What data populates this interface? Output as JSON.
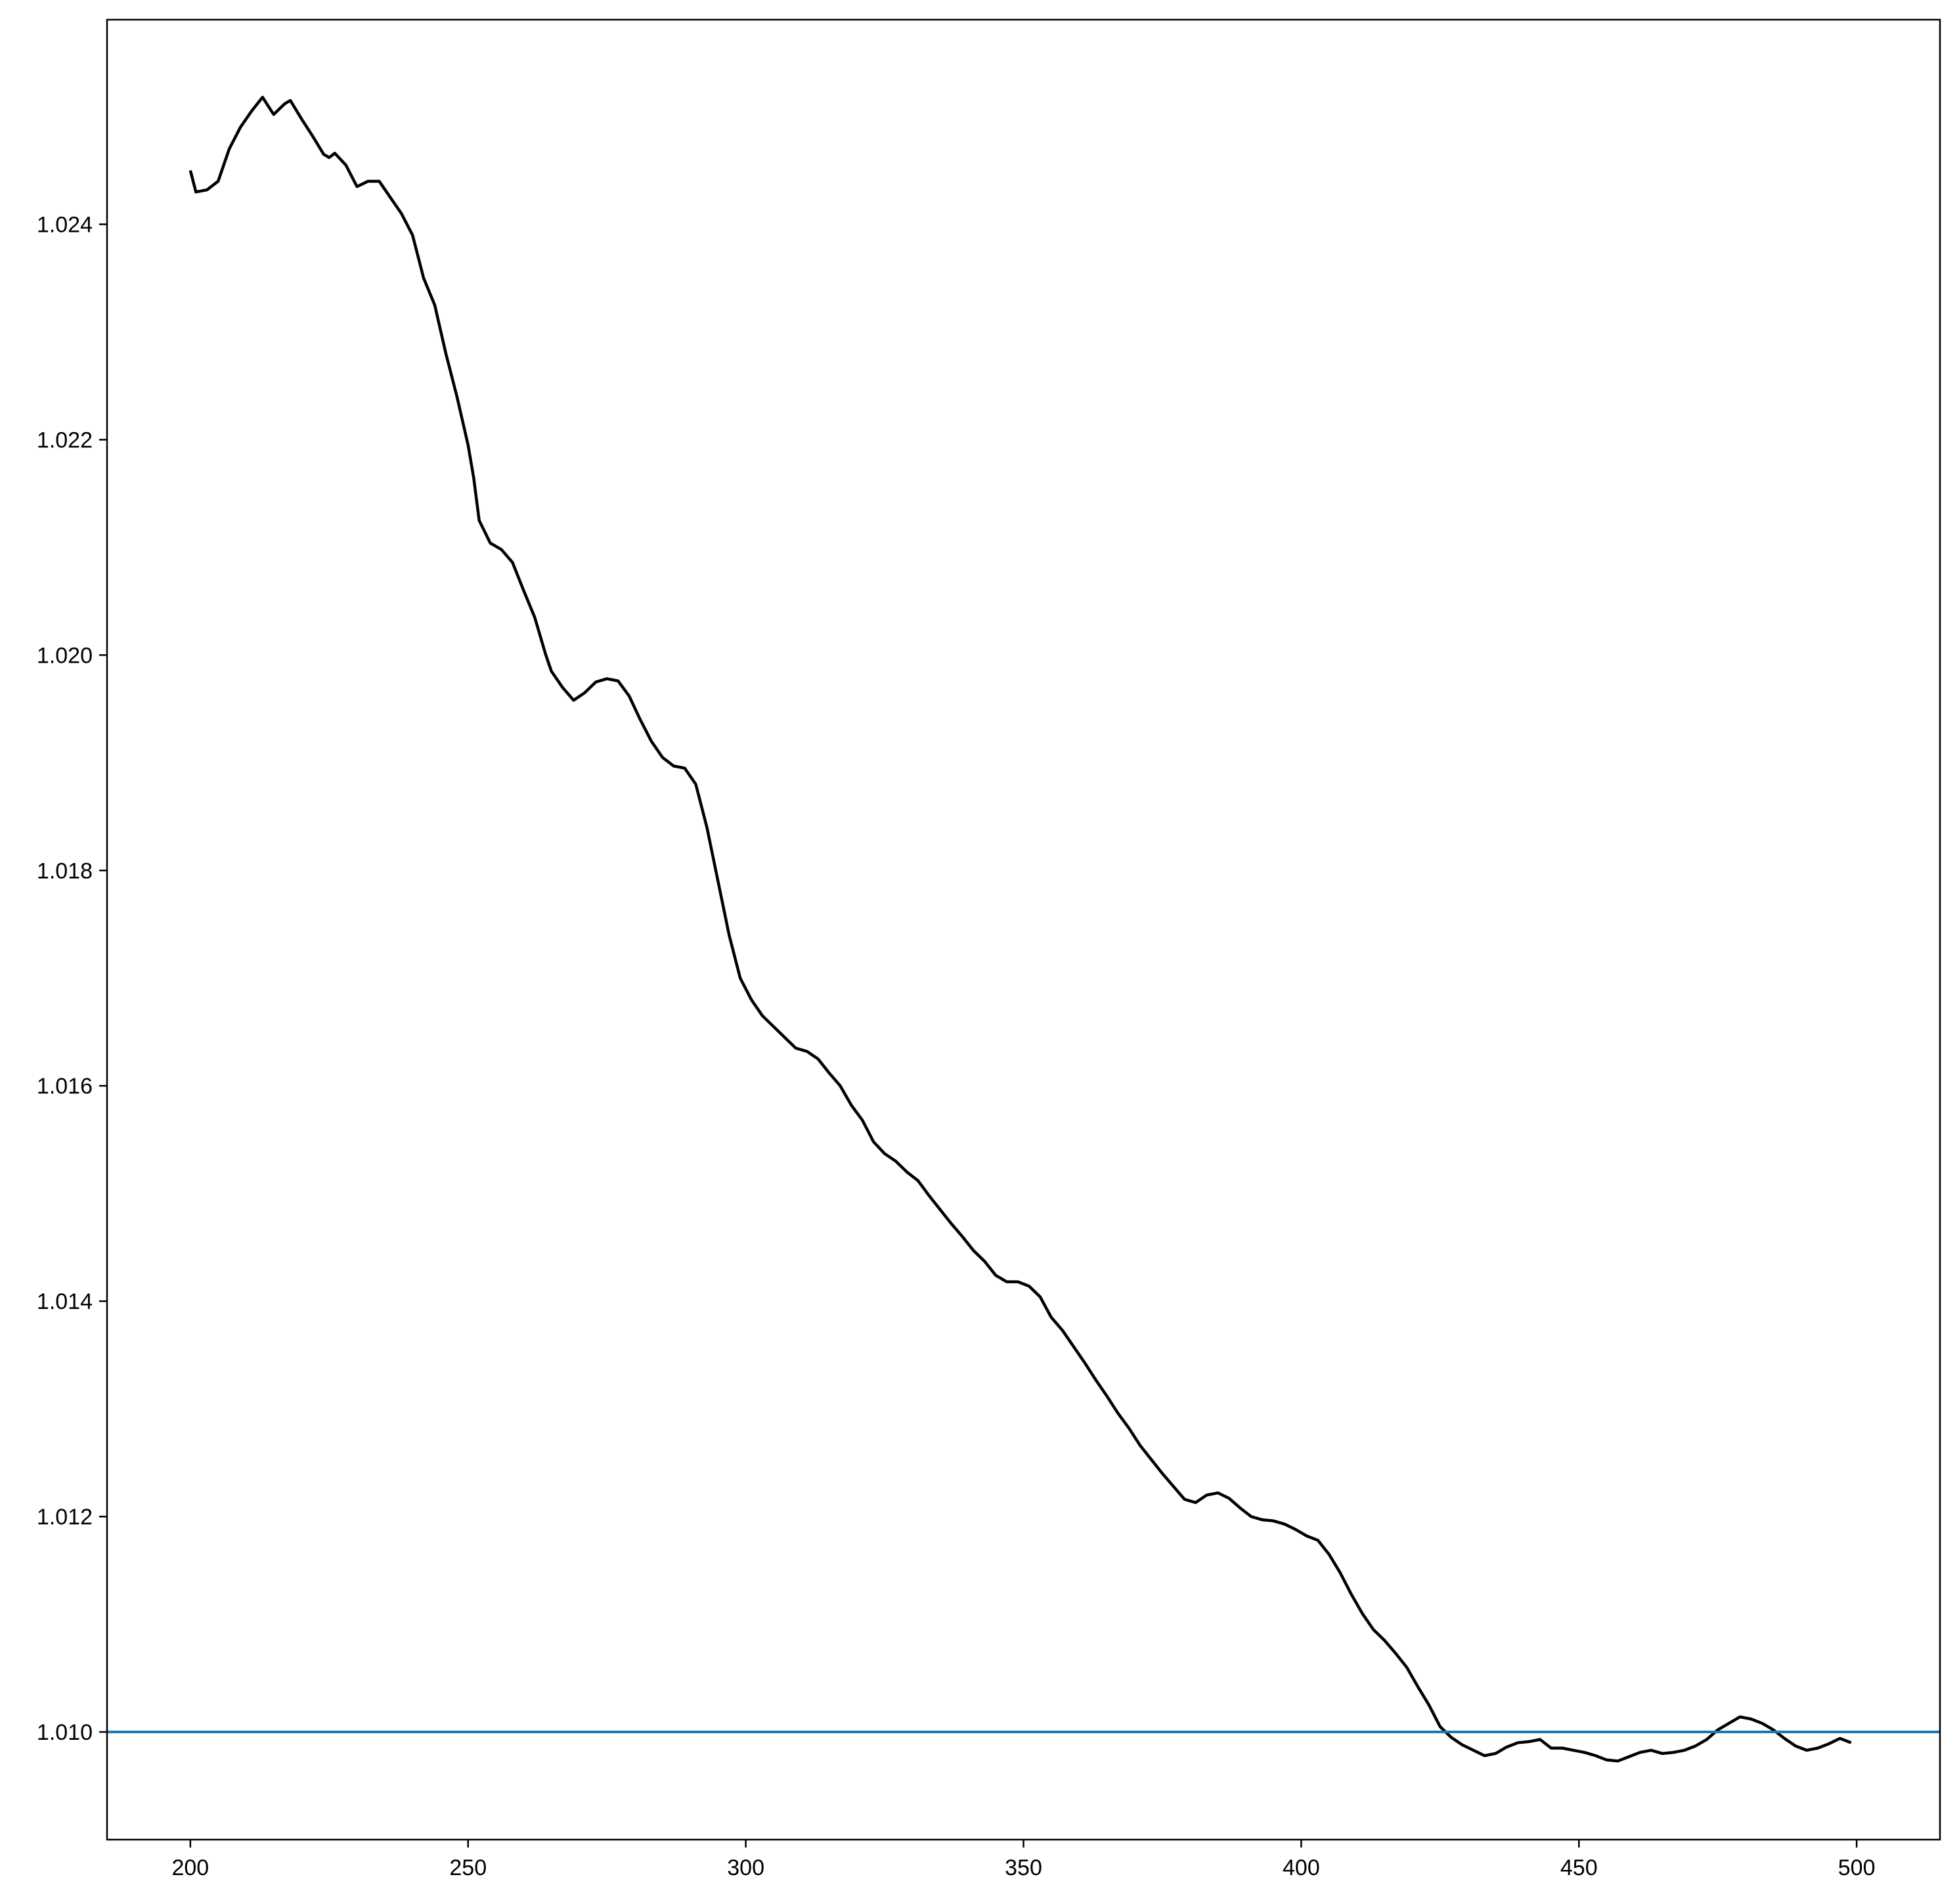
{
  "chart_data": {
    "type": "line",
    "title": "",
    "xlabel": "",
    "ylabel": "",
    "xlim": [
      185,
      515
    ],
    "ylim": [
      1.009,
      1.0259
    ],
    "xticks": [
      200,
      250,
      300,
      350,
      400,
      450,
      500
    ],
    "xtick_labels": [
      "200",
      "250",
      "300",
      "350",
      "400",
      "450",
      "500"
    ],
    "yticks": [
      1.01,
      1.012,
      1.014,
      1.016,
      1.018,
      1.02,
      1.022,
      1.024
    ],
    "ytick_labels": [
      "1.010",
      "1.012",
      "1.014",
      "1.016",
      "1.018",
      "1.020",
      "1.022",
      "1.024"
    ],
    "grid": false,
    "legend": "none",
    "hline": {
      "y": 1.01,
      "color": "#1f77b4"
    },
    "series": [
      {
        "color": "#000000",
        "points": [
          [
            200,
            1.0245
          ],
          [
            201,
            1.0243
          ],
          [
            203,
            1.02432
          ],
          [
            205,
            1.0244
          ],
          [
            207,
            1.0247
          ],
          [
            209,
            1.0249
          ],
          [
            211,
            1.02505
          ],
          [
            213,
            1.02518
          ],
          [
            215,
            1.02502
          ],
          [
            217,
            1.02512
          ],
          [
            218,
            1.02515
          ],
          [
            220,
            1.02498
          ],
          [
            222,
            1.02482
          ],
          [
            224,
            1.02465
          ],
          [
            225,
            1.02462
          ],
          [
            226,
            1.02466
          ],
          [
            228,
            1.02455
          ],
          [
            230,
            1.02435
          ],
          [
            232,
            1.0244
          ],
          [
            234,
            1.0244
          ],
          [
            236,
            1.02425
          ],
          [
            238,
            1.0241
          ],
          [
            240,
            1.0239
          ],
          [
            242,
            1.0235
          ],
          [
            244,
            1.02325
          ],
          [
            246,
            1.0228
          ],
          [
            248,
            1.0224
          ],
          [
            250,
            1.02195
          ],
          [
            251,
            1.02165
          ],
          [
            252,
            1.02125
          ],
          [
            254,
            1.02104
          ],
          [
            256,
            1.02098
          ],
          [
            258,
            1.02086
          ],
          [
            260,
            1.0206
          ],
          [
            262,
            1.02035
          ],
          [
            264,
            1.02
          ],
          [
            265,
            1.01985
          ],
          [
            267,
            1.0197
          ],
          [
            269,
            1.01958
          ],
          [
            271,
            1.01965
          ],
          [
            273,
            1.01975
          ],
          [
            275,
            1.01978
          ],
          [
            277,
            1.01976
          ],
          [
            279,
            1.01962
          ],
          [
            281,
            1.0194
          ],
          [
            283,
            1.0192
          ],
          [
            285,
            1.01905
          ],
          [
            287,
            1.01897
          ],
          [
            289,
            1.01895
          ],
          [
            291,
            1.0188
          ],
          [
            293,
            1.0184
          ],
          [
            295,
            1.0179
          ],
          [
            297,
            1.0174
          ],
          [
            299,
            1.017
          ],
          [
            301,
            1.0168
          ],
          [
            303,
            1.01665
          ],
          [
            305,
            1.01655
          ],
          [
            307,
            1.01645
          ],
          [
            309,
            1.01635
          ],
          [
            311,
            1.01632
          ],
          [
            313,
            1.01625
          ],
          [
            315,
            1.01612
          ],
          [
            317,
            1.016
          ],
          [
            319,
            1.01582
          ],
          [
            321,
            1.01568
          ],
          [
            323,
            1.01548
          ],
          [
            325,
            1.01537
          ],
          [
            327,
            1.0153
          ],
          [
            329,
            1.0152
          ],
          [
            331,
            1.01512
          ],
          [
            333,
            1.01498
          ],
          [
            335,
            1.01485
          ],
          [
            337,
            1.01472
          ],
          [
            339,
            1.0146
          ],
          [
            341,
            1.01447
          ],
          [
            343,
            1.01437
          ],
          [
            345,
            1.01424
          ],
          [
            347,
            1.01418
          ],
          [
            349,
            1.01418
          ],
          [
            351,
            1.01414
          ],
          [
            353,
            1.01404
          ],
          [
            355,
            1.01385
          ],
          [
            357,
            1.01373
          ],
          [
            359,
            1.01358
          ],
          [
            361,
            1.01343
          ],
          [
            363,
            1.01327
          ],
          [
            365,
            1.01312
          ],
          [
            367,
            1.01296
          ],
          [
            369,
            1.01282
          ],
          [
            371,
            1.01266
          ],
          [
            373,
            1.01253
          ],
          [
            375,
            1.0124
          ],
          [
            377,
            1.01228
          ],
          [
            379,
            1.01216
          ],
          [
            381,
            1.01213
          ],
          [
            383,
            1.0122
          ],
          [
            385,
            1.01222
          ],
          [
            387,
            1.01217
          ],
          [
            389,
            1.01208
          ],
          [
            391,
            1.012
          ],
          [
            393,
            1.01197
          ],
          [
            395,
            1.01196
          ],
          [
            397,
            1.01193
          ],
          [
            399,
            1.01188
          ],
          [
            401,
            1.01182
          ],
          [
            403,
            1.01178
          ],
          [
            405,
            1.01165
          ],
          [
            407,
            1.01148
          ],
          [
            409,
            1.01128
          ],
          [
            411,
            1.0111
          ],
          [
            413,
            1.01095
          ],
          [
            415,
            1.01085
          ],
          [
            417,
            1.01073
          ],
          [
            419,
            1.0106
          ],
          [
            421,
            1.01042
          ],
          [
            423,
            1.01025
          ],
          [
            425,
            1.01005
          ],
          [
            427,
            1.00995
          ],
          [
            429,
            1.00988
          ],
          [
            431,
            1.00983
          ],
          [
            433,
            1.00978
          ],
          [
            435,
            1.0098
          ],
          [
            437,
            1.00986
          ],
          [
            439,
            1.0099
          ],
          [
            441,
            1.00991
          ],
          [
            443,
            1.00993
          ],
          [
            445,
            1.00985
          ],
          [
            447,
            1.00985
          ],
          [
            449,
            1.00983
          ],
          [
            451,
            1.00981
          ],
          [
            453,
            1.00978
          ],
          [
            455,
            1.00974
          ],
          [
            457,
            1.00973
          ],
          [
            459,
            1.00977
          ],
          [
            461,
            1.00981
          ],
          [
            463,
            1.00983
          ],
          [
            465,
            1.0098
          ],
          [
            467,
            1.00981
          ],
          [
            469,
            1.00983
          ],
          [
            471,
            1.00987
          ],
          [
            473,
            1.00993
          ],
          [
            475,
            1.01002
          ],
          [
            477,
            1.01008
          ],
          [
            479,
            1.01014
          ],
          [
            481,
            1.01012
          ],
          [
            483,
            1.01008
          ],
          [
            485,
            1.01002
          ],
          [
            487,
            1.00994
          ],
          [
            489,
            1.00987
          ],
          [
            491,
            1.00983
          ],
          [
            493,
            1.00985
          ],
          [
            495,
            1.00989
          ],
          [
            497,
            1.00994
          ],
          [
            499,
            1.0099
          ]
        ]
      }
    ]
  }
}
